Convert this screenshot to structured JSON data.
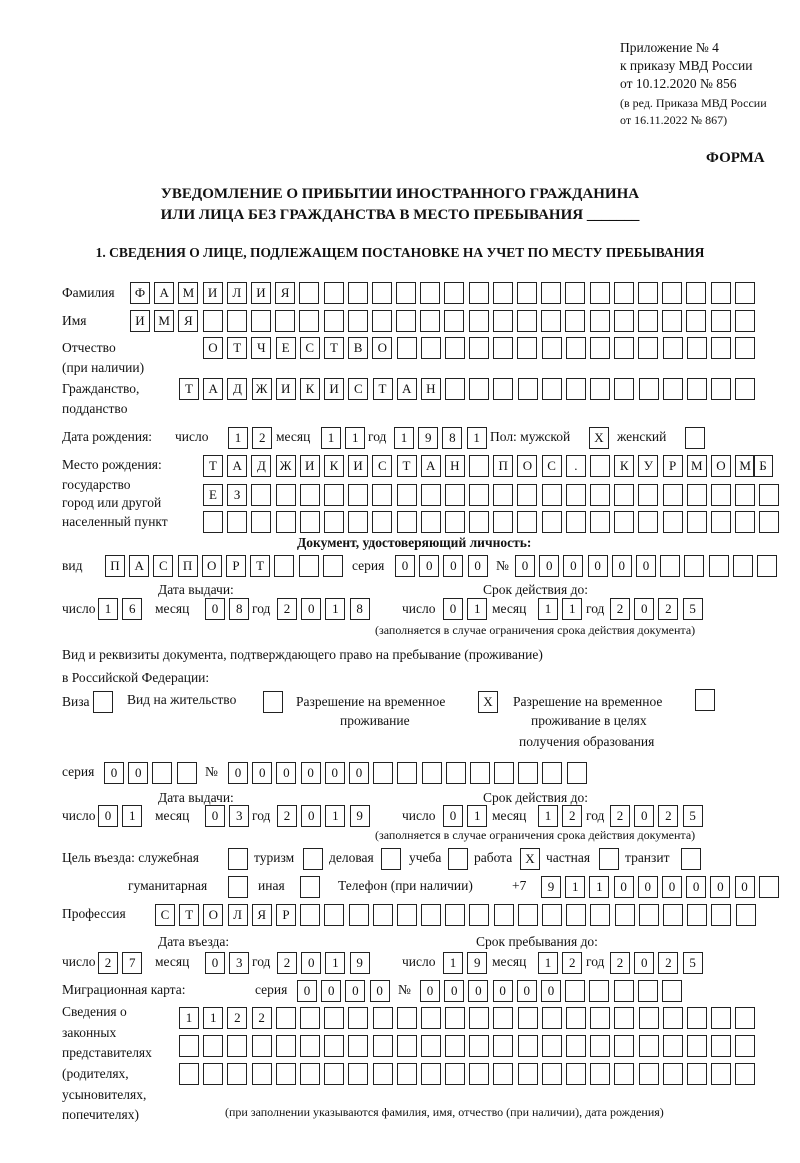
{
  "header": {
    "line1": "Приложение № 4",
    "line2": "к приказу МВД России",
    "line3": "от 10.12.2020 № 856",
    "line4": "(в ред. Приказа МВД России",
    "line5": "от 16.11.2022 № 867)",
    "forma": "ФОРМА"
  },
  "title": {
    "line1": "УВЕДОМЛЕНИЕ О ПРИБЫТИИ ИНОСТРАННОГО ГРАЖДАНИНА",
    "line2": "ИЛИ ЛИЦА БЕЗ ГРАЖДАНСТВА В МЕСТО ПРЕБЫВАНИЯ _______"
  },
  "section1": "1. СВЕДЕНИЯ О ЛИЦЕ, ПОДЛЕЖАЩЕМ ПОСТАНОВКЕ НА УЧЕТ ПО МЕСТУ ПРЕБЫВАНИЯ",
  "labels": {
    "surname": "Фамилия",
    "name": "Имя",
    "patronymic1": "Отчество",
    "patronymic2": "(при наличии)",
    "citizenship1": "Гражданство,",
    "citizenship2": "подданство",
    "dob": "Дата рождения:",
    "day": "число",
    "month": "месяц",
    "year": "год",
    "sex": "Пол: мужской",
    "female": "женский",
    "pob1": "Место рождения:",
    "pob2": "государство",
    "pob3": "город или другой",
    "pob4": "населенный пункт",
    "id_doc": "Документ, удостоверяющий личность:",
    "kind": "вид",
    "series": "серия",
    "number": "№",
    "issue_date": "Дата выдачи:",
    "valid_until": "Срок действия до:",
    "validity_note": "(заполняется в случае ограничения срока действия документа)",
    "stay_doc1": "Вид и реквизиты документа, подтверждающего право на пребывание (проживание)",
    "stay_doc2": "в Российской Федерации:",
    "visa": "Виза",
    "residence": "Вид на жительство",
    "trp1": "Разрешение на временное",
    "trp2": "проживание",
    "trpe1": "Разрешение на временное",
    "trpe2": "проживание в целях",
    "trpe3": "получения образования",
    "purpose": "Цель въезда: служебная",
    "tourism": "туризм",
    "business": "деловая",
    "study": "учеба",
    "work": "работа",
    "private": "частная",
    "transit": "транзит",
    "humanitarian": "гуманитарная",
    "other": "иная",
    "phone": "Телефон (при наличии)",
    "phone_prefix": "+7",
    "profession": "Профессия",
    "entry_date": "Дата въезда:",
    "stay_until": "Срок пребывания до:",
    "migration_card": "Миграционная карта:",
    "reps1": "Сведения о",
    "reps2": "законных",
    "reps3": "представителях",
    "reps4": "(родителях,",
    "reps5": "усыновителях,",
    "reps6": "попечителях)",
    "reps_note": "(при заполнении указываются фамилия, имя, отчество (при наличии), дата рождения)"
  },
  "values": {
    "surname": [
      "Ф",
      "А",
      "М",
      "И",
      "Л",
      "И",
      "Я"
    ],
    "name": [
      "И",
      "М",
      "Я"
    ],
    "patronymic": [
      "О",
      "Т",
      "Ч",
      "Е",
      "С",
      "Т",
      "В",
      "О"
    ],
    "citizenship": [
      "Т",
      "А",
      "Д",
      "Ж",
      "И",
      "К",
      "И",
      "С",
      "Т",
      "А",
      "Н"
    ],
    "dob_day": [
      "1",
      "2"
    ],
    "dob_month": [
      "1",
      "1"
    ],
    "dob_year": [
      "1",
      "9",
      "8",
      "1"
    ],
    "sex_male": "X",
    "sex_female": "",
    "pob_row1": [
      "Т",
      "А",
      "Д",
      "Ж",
      "И",
      "К",
      "И",
      "С",
      "Т",
      "А",
      "Н",
      "",
      "П",
      "О",
      "С",
      ".",
      "",
      "К",
      "У",
      "Р",
      "М",
      "О",
      "М"
    ],
    "pob_row1_last": "Б",
    "pob_row2": [
      "Е",
      "З"
    ],
    "id_kind": [
      "П",
      "А",
      "С",
      "П",
      "О",
      "Р",
      "Т"
    ],
    "id_series": [
      "0",
      "0",
      "0",
      "0"
    ],
    "id_number": [
      "0",
      "0",
      "0",
      "0",
      "0",
      "0"
    ],
    "id_issue_day": [
      "1",
      "6"
    ],
    "id_issue_month": [
      "0",
      "8"
    ],
    "id_issue_year": [
      "2",
      "0",
      "1",
      "8"
    ],
    "id_valid_day": [
      "0",
      "1"
    ],
    "id_valid_month": [
      "1",
      "1"
    ],
    "id_valid_year": [
      "2",
      "0",
      "2",
      "5"
    ],
    "visa": "",
    "residence": "",
    "trp": "X",
    "trpe": "",
    "stay_series": [
      "0",
      "0"
    ],
    "stay_number": [
      "0",
      "0",
      "0",
      "0",
      "0",
      "0"
    ],
    "stay_issue_day": [
      "0",
      "1"
    ],
    "stay_issue_month": [
      "0",
      "3"
    ],
    "stay_issue_year": [
      "2",
      "0",
      "1",
      "9"
    ],
    "stay_valid_day": [
      "0",
      "1"
    ],
    "stay_valid_month": [
      "1",
      "2"
    ],
    "stay_valid_year": [
      "2",
      "0",
      "2",
      "5"
    ],
    "purpose_official": "",
    "purpose_tourism": "",
    "purpose_business": "",
    "purpose_study": "",
    "purpose_work": "X",
    "purpose_private": "",
    "purpose_transit": "",
    "purpose_humanitarian": "",
    "purpose_other": "",
    "phone": [
      "9",
      "1",
      "1",
      "0",
      "0",
      "0",
      "0",
      "0",
      "0"
    ],
    "profession": [
      "С",
      "Т",
      "О",
      "Л",
      "Я",
      "Р"
    ],
    "entry_day": [
      "2",
      "7"
    ],
    "entry_month": [
      "0",
      "3"
    ],
    "entry_year": [
      "2",
      "0",
      "1",
      "9"
    ],
    "stay_until_day": [
      "1",
      "9"
    ],
    "stay_until_month": [
      "1",
      "2"
    ],
    "stay_until_year": [
      "2",
      "0",
      "2",
      "5"
    ],
    "mc_series": [
      "0",
      "0",
      "0",
      "0"
    ],
    "mc_number": [
      "0",
      "0",
      "0",
      "0",
      "0",
      "0"
    ],
    "reps_row1": [
      "1",
      "1",
      "2",
      "2"
    ]
  }
}
